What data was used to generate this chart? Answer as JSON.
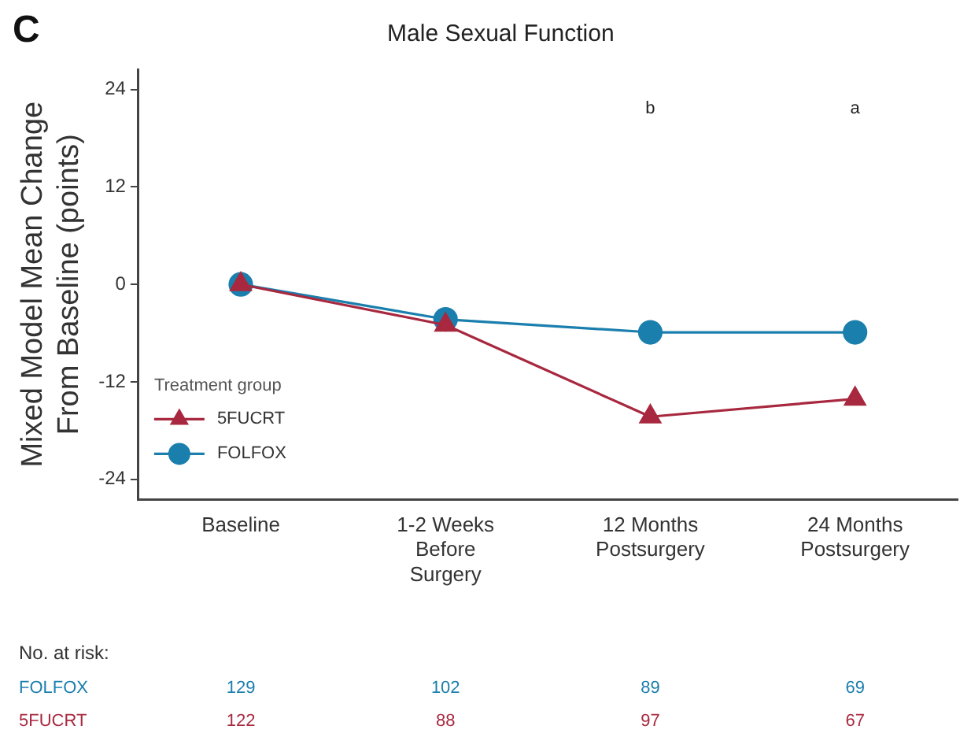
{
  "chart_data": {
    "type": "line",
    "title": "Male Sexual Function",
    "ylabel": "Mixed Model Mean Change From Baseline (points)",
    "legend_title": "Treatment group",
    "categories": [
      "Baseline",
      "1-2 Weeks Before Surgery",
      "12 Months Postsurgery",
      "24 Months Postsurgery"
    ],
    "series": [
      {
        "name": "5FUCRT",
        "color": "#a8283f",
        "marker": "triangle",
        "values": [
          0,
          -5,
          -16.3,
          -14.1
        ]
      },
      {
        "name": "FOLFOX",
        "color": "#1b7fae",
        "marker": "circle",
        "values": [
          0,
          -4.3,
          -5.9,
          -5.9
        ]
      }
    ],
    "ylim": [
      -26.5,
      26.5
    ],
    "yticks": [
      -24,
      -12,
      0,
      12,
      24
    ],
    "grid": false,
    "legend": "bottom left",
    "annotations": [
      "C",
      "b",
      "a",
      "No. at risk:",
      "FOLFOX",
      "129",
      "102",
      "89",
      "69",
      "5FUCRT",
      "122",
      "88",
      "97",
      "67"
    ]
  }
}
